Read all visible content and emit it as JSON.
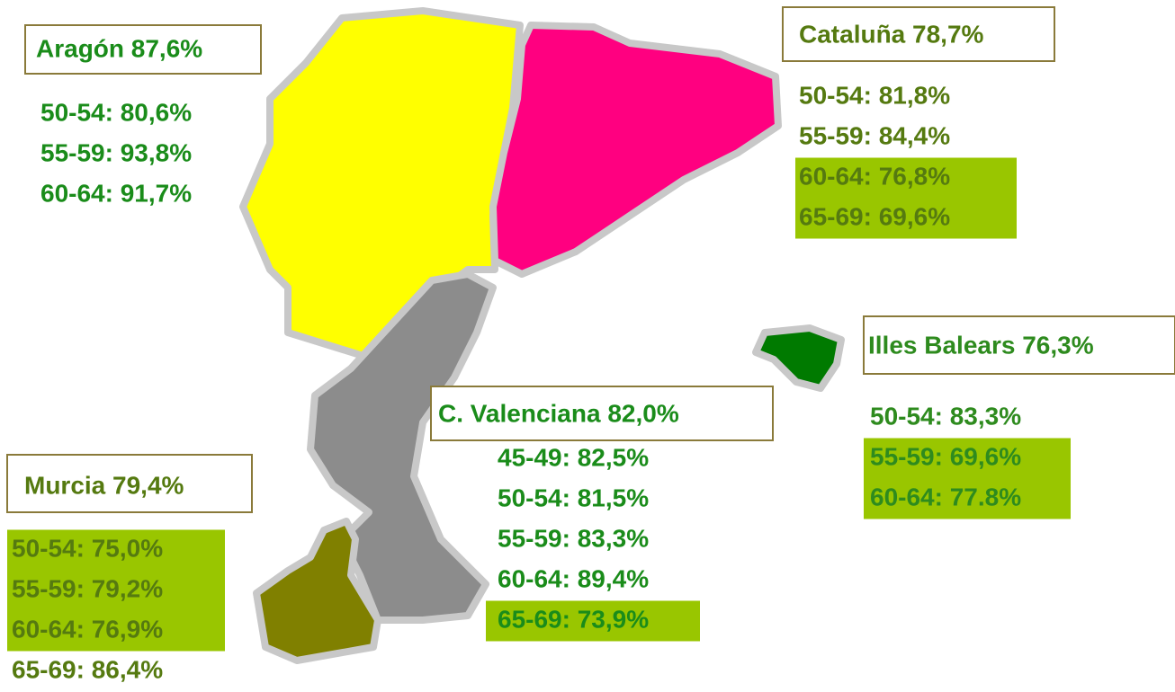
{
  "regions": [
    {
      "title": "Aragón 87,6%",
      "rows": [
        {
          "text": "50-54: 80,6%",
          "highlight": false
        },
        {
          "text": "55-59: 93,8%",
          "highlight": false
        },
        {
          "text": "60-64: 91,7%",
          "highlight": false
        }
      ]
    },
    {
      "title": "Cataluña 78,7%",
      "rows": [
        {
          "text": "50-54: 81,8%",
          "highlight": false
        },
        {
          "text": "55-59: 84,4%",
          "highlight": false
        },
        {
          "text": "60-64: 76,8%",
          "highlight": true
        },
        {
          "text": "65-69: 69,6%",
          "highlight": true
        }
      ]
    },
    {
      "title": "Illes Balears 76,3%",
      "rows": [
        {
          "text": "50-54: 83,3%",
          "highlight": false
        },
        {
          "text": "55-59: 69,6%",
          "highlight": true
        },
        {
          "text": "60-64: 77.8%",
          "highlight": true
        }
      ]
    },
    {
      "title": "C. Valenciana 82,0%",
      "rows": [
        {
          "text": "45-49: 82,5%",
          "highlight": false
        },
        {
          "text": "50-54: 81,5%",
          "highlight": false
        },
        {
          "text": "55-59: 83,3%",
          "highlight": false
        },
        {
          "text": "60-64: 89,4%",
          "highlight": false
        },
        {
          "text": "65-69: 73,9%",
          "highlight": true
        }
      ]
    },
    {
      "title": "Murcia 79,4%",
      "rows": [
        {
          "text": "50-54: 75,0%",
          "highlight": true
        },
        {
          "text": "55-59: 79,2%",
          "highlight": true
        },
        {
          "text": "60-64: 76,9%",
          "highlight": true
        },
        {
          "text": "65-69: 86,4%",
          "highlight": false
        }
      ]
    }
  ]
}
